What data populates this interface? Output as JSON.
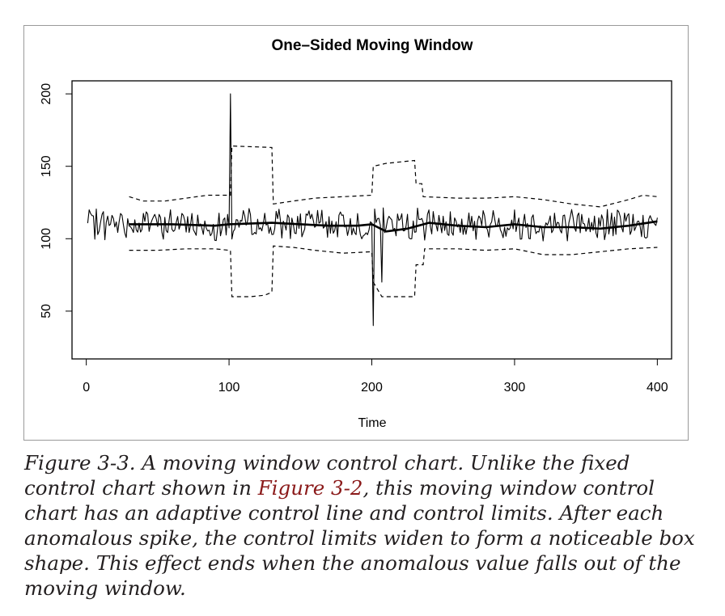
{
  "chart_data": {
    "type": "line",
    "title": "One–Sided Moving Window",
    "xlabel": "Time",
    "ylabel": "",
    "xlim": [
      -10,
      410
    ],
    "ylim": [
      17,
      209
    ],
    "xticks": [
      0,
      100,
      200,
      300,
      400
    ],
    "yticks": [
      50,
      100,
      150,
      200
    ],
    "grid": false,
    "legend": "none",
    "series": [
      {
        "role": "observed",
        "style": "thin-solid",
        "base": 110,
        "n": 400,
        "spikes": [
          {
            "x": 101,
            "y": 200
          },
          {
            "x": 201,
            "y": 40
          },
          {
            "x": 207,
            "y": 70
          }
        ]
      },
      {
        "role": "moving-average",
        "style": "thick-solid",
        "points": [
          [
            30,
            110
          ],
          [
            60,
            110
          ],
          [
            90,
            109
          ],
          [
            100,
            110
          ],
          [
            130,
            111
          ],
          [
            150,
            110
          ],
          [
            170,
            109
          ],
          [
            190,
            109
          ],
          [
            200,
            110
          ],
          [
            210,
            105
          ],
          [
            225,
            107
          ],
          [
            240,
            111
          ],
          [
            260,
            109
          ],
          [
            280,
            108
          ],
          [
            300,
            110
          ],
          [
            320,
            108
          ],
          [
            340,
            108
          ],
          [
            360,
            107
          ],
          [
            380,
            109
          ],
          [
            400,
            112
          ]
        ]
      },
      {
        "role": "upper-limit",
        "style": "dashed",
        "points": [
          [
            30,
            129
          ],
          [
            40,
            126
          ],
          [
            55,
            126
          ],
          [
            70,
            128
          ],
          [
            85,
            130
          ],
          [
            100,
            130
          ],
          [
            101,
            130
          ],
          [
            102,
            164
          ],
          [
            130,
            163
          ],
          [
            131,
            124
          ],
          [
            145,
            126
          ],
          [
            160,
            128
          ],
          [
            180,
            129
          ],
          [
            200,
            130
          ],
          [
            201,
            150
          ],
          [
            210,
            152
          ],
          [
            230,
            154
          ],
          [
            231,
            138
          ],
          [
            235,
            138
          ],
          [
            236,
            129
          ],
          [
            260,
            128
          ],
          [
            280,
            128
          ],
          [
            300,
            129
          ],
          [
            320,
            127
          ],
          [
            340,
            124
          ],
          [
            360,
            122
          ],
          [
            380,
            127
          ],
          [
            390,
            130
          ],
          [
            400,
            129
          ]
        ]
      },
      {
        "role": "lower-limit",
        "style": "dashed",
        "points": [
          [
            30,
            92
          ],
          [
            50,
            92
          ],
          [
            70,
            93
          ],
          [
            90,
            93
          ],
          [
            100,
            92
          ],
          [
            101,
            92
          ],
          [
            102,
            60
          ],
          [
            115,
            60
          ],
          [
            125,
            61
          ],
          [
            130,
            63
          ],
          [
            131,
            95
          ],
          [
            145,
            94
          ],
          [
            160,
            92
          ],
          [
            180,
            90
          ],
          [
            200,
            91
          ],
          [
            201,
            70
          ],
          [
            207,
            60
          ],
          [
            220,
            60
          ],
          [
            230,
            60
          ],
          [
            231,
            82
          ],
          [
            236,
            82
          ],
          [
            237,
            93
          ],
          [
            260,
            93
          ],
          [
            280,
            92
          ],
          [
            300,
            93
          ],
          [
            320,
            89
          ],
          [
            340,
            89
          ],
          [
            360,
            91
          ],
          [
            380,
            93
          ],
          [
            400,
            94
          ]
        ]
      }
    ]
  },
  "caption": {
    "intro": "Figure 3-3. A moving window control chart. Unlike the fixed control chart shown in ",
    "link": "Figure 3-2",
    "rest": ", this moving window control chart has an adaptive control line and control limits. After each anomalous spike, the control limits widen to form a noticeable box shape. This effect ends when the anomalous value falls out of the moving window."
  }
}
